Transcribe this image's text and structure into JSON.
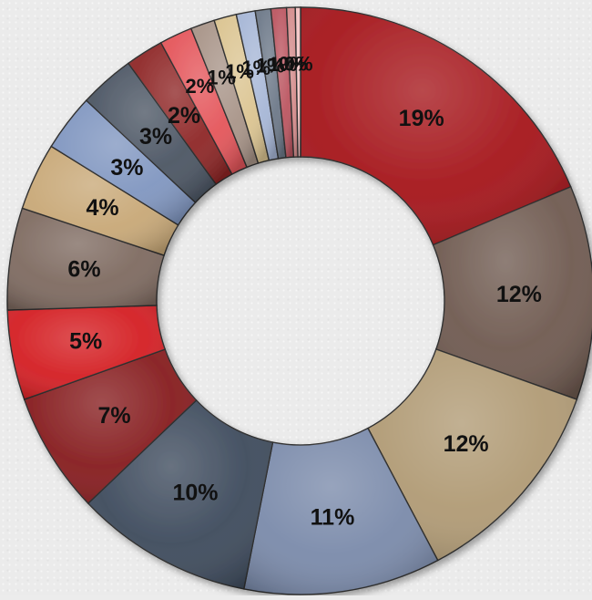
{
  "chart_data": {
    "type": "pie",
    "variant": "donut",
    "title": "",
    "legend": "none",
    "labels_shown": "percent",
    "slices": [
      {
        "label": "19%",
        "value": 19.6,
        "color": "#a5151a"
      },
      {
        "label": "12%",
        "value": 12.4,
        "color": "#6f5a50"
      },
      {
        "label": "12%",
        "value": 12.4,
        "color": "#b09a74"
      },
      {
        "label": "11%",
        "value": 11.4,
        "color": "#7a8aaa"
      },
      {
        "label": "10%",
        "value": 10.3,
        "color": "#3d4a5c"
      },
      {
        "label": "7%",
        "value": 7.0,
        "color": "#861c1e"
      },
      {
        "label": "5%",
        "value": 5.2,
        "color": "#d41e22"
      },
      {
        "label": "6%",
        "value": 5.9,
        "color": "#7e6a60"
      },
      {
        "label": "4%",
        "value": 3.9,
        "color": "#c8a877"
      },
      {
        "label": "3%",
        "value": 3.3,
        "color": "#8096c0"
      },
      {
        "label": "3%",
        "value": 3.2,
        "color": "#4b5563"
      },
      {
        "label": "2%",
        "value": 2.2,
        "color": "#8e2626"
      },
      {
        "label": "2%",
        "value": 1.9,
        "color": "#e4555a"
      },
      {
        "label": "1%",
        "value": 1.4,
        "color": "#a89488"
      },
      {
        "label": "1%",
        "value": 1.3,
        "color": "#dbc491"
      },
      {
        "label": "1%",
        "value": 1.1,
        "color": "#a6b6d6"
      },
      {
        "label": "1%",
        "value": 0.9,
        "color": "#6c7888"
      },
      {
        "label": "1%",
        "value": 0.9,
        "color": "#bb5560"
      },
      {
        "label": "0%",
        "value": 0.5,
        "color": "#d38a8a"
      },
      {
        "label": "0%",
        "value": 0.3,
        "color": "#f3c2c2"
      }
    ]
  }
}
